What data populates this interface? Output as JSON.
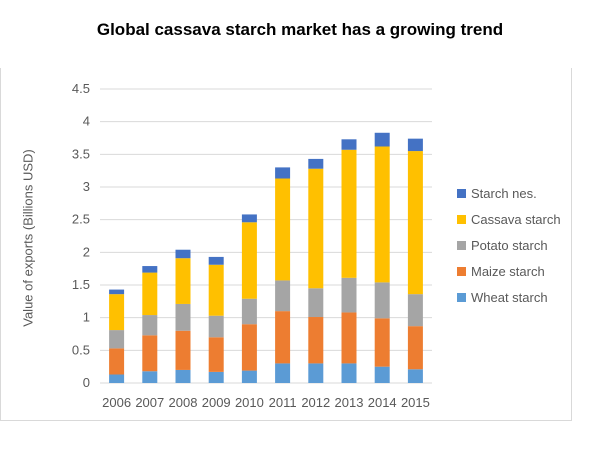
{
  "title": "Global cassava starch market has a growing trend",
  "chart_data": {
    "type": "bar",
    "stacked": true,
    "categories": [
      "2006",
      "2007",
      "2008",
      "2009",
      "2010",
      "2011",
      "2012",
      "2013",
      "2014",
      "2015"
    ],
    "series": [
      {
        "name": "Wheat starch",
        "color": "#5b9bd5",
        "values": [
          0.13,
          0.18,
          0.2,
          0.17,
          0.19,
          0.3,
          0.3,
          0.3,
          0.25,
          0.21
        ]
      },
      {
        "name": "Maize starch",
        "color": "#ed7d31",
        "values": [
          0.4,
          0.55,
          0.6,
          0.53,
          0.71,
          0.8,
          0.71,
          0.78,
          0.74,
          0.66
        ]
      },
      {
        "name": "Potato starch",
        "color": "#a5a5a5",
        "values": [
          0.28,
          0.31,
          0.41,
          0.33,
          0.39,
          0.47,
          0.44,
          0.53,
          0.55,
          0.49
        ]
      },
      {
        "name": "Cassava starch",
        "color": "#ffc000",
        "values": [
          0.55,
          0.65,
          0.7,
          0.78,
          1.17,
          1.56,
          1.83,
          1.96,
          2.08,
          2.19
        ]
      },
      {
        "name": "Starch nes.",
        "color": "#4472c4",
        "values": [
          0.07,
          0.1,
          0.13,
          0.12,
          0.12,
          0.17,
          0.15,
          0.16,
          0.21,
          0.19
        ]
      }
    ],
    "ylabel": "Value of exports (Billions USD)",
    "xlabel": "",
    "ylim": [
      0,
      4.5
    ],
    "yticks": [
      "0",
      "0.5",
      "1",
      "1.5",
      "2",
      "2.5",
      "3",
      "3.5",
      "4",
      "4.5"
    ],
    "grid": true,
    "legend": "right"
  }
}
